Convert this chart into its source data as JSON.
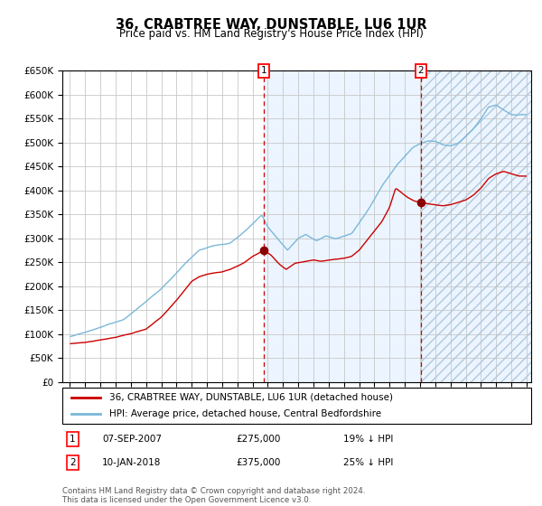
{
  "title": "36, CRABTREE WAY, DUNSTABLE, LU6 1UR",
  "subtitle": "Price paid vs. HM Land Registry's House Price Index (HPI)",
  "legend_line1": "36, CRABTREE WAY, DUNSTABLE, LU6 1UR (detached house)",
  "legend_line2": "HPI: Average price, detached house, Central Bedfordshire",
  "sale1_price": 275000,
  "sale1_label": "07-SEP-2007",
  "sale1_hpi_pct": "19% ↓ HPI",
  "sale1_year": 2007.75,
  "sale2_price": 375000,
  "sale2_label": "10-JAN-2018",
  "sale2_hpi_pct": "25% ↓ HPI",
  "sale2_year": 2018.04,
  "hpi_color": "#7ab8d9",
  "price_color": "#cc0000",
  "bg_color": "#ddeeff",
  "footer": "Contains HM Land Registry data © Crown copyright and database right 2024.\nThis data is licensed under the Open Government Licence v3.0.",
  "ylim_min": 0,
  "ylim_max": 650000,
  "ytick_step": 50000,
  "xstart": 1995,
  "xend": 2025
}
